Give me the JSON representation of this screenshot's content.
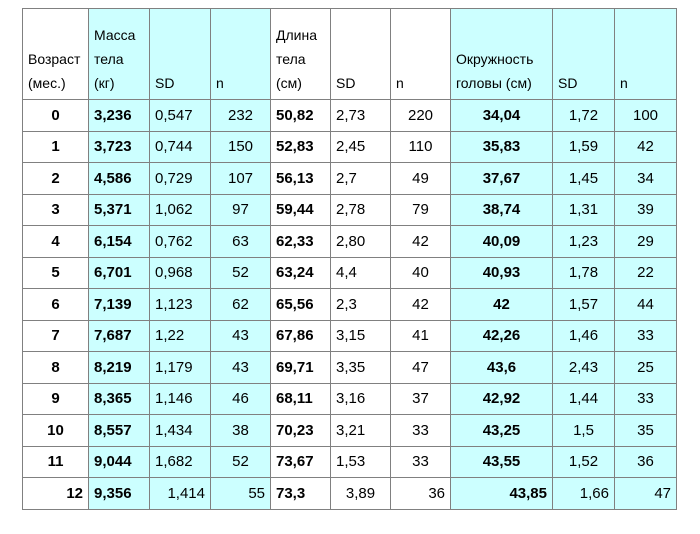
{
  "header": {
    "age": "Возраст (мес.)",
    "weight": "Масса тела (кг)",
    "sd1": "SD",
    "n1": "n",
    "length": "Длина тела (см)",
    "sd2": "SD",
    "n2": "n",
    "head": "Окружность головы (см)",
    "sd3": "SD",
    "n3": "n"
  },
  "rows": [
    [
      "0",
      "3,236",
      "0,547",
      "232",
      "50,82",
      "2,73",
      "220",
      "34,04",
      "1,72",
      "100"
    ],
    [
      "1",
      "3,723",
      "0,744",
      "150",
      "52,83",
      "2,45",
      "110",
      "35,83",
      "1,59",
      "42"
    ],
    [
      "2",
      "4,586",
      "0,729",
      "107",
      "56,13",
      "2,7",
      "49",
      "37,67",
      "1,45",
      "34"
    ],
    [
      "3",
      "5,371",
      "1,062",
      "97",
      "59,44",
      "2,78",
      "79",
      "38,74",
      "1,31",
      "39"
    ],
    [
      "4",
      "6,154",
      "0,762",
      "63",
      "62,33",
      "2,80",
      "42",
      "40,09",
      "1,23",
      "29"
    ],
    [
      "5",
      "6,701",
      "0,968",
      "52",
      "63,24",
      "4,4",
      "40",
      "40,93",
      "1,78",
      "22"
    ],
    [
      "6",
      "7,139",
      "1,123",
      "62",
      "65,56",
      "2,3",
      "42",
      "42",
      "1,57",
      "44"
    ],
    [
      "7",
      "7,687",
      "1,22",
      "43",
      "67,86",
      "3,15",
      "41",
      "42,26",
      "1,46",
      "33"
    ],
    [
      "8",
      "8,219",
      "1,179",
      "43",
      "69,71",
      "3,35",
      "47",
      "43,6",
      "2,43",
      "25"
    ],
    [
      "9",
      "8,365",
      "1,146",
      "46",
      "68,11",
      "3,16",
      "37",
      "42,92",
      "1,44",
      "33"
    ],
    [
      "10",
      "8,557",
      "1,434",
      "38",
      "70,23",
      "3,21",
      "33",
      "43,25",
      "1,5",
      "35"
    ],
    [
      "11",
      "9,044",
      "1,682",
      "52",
      "73,67",
      "1,53",
      "33",
      "43,55",
      "1,52",
      "36"
    ],
    [
      "12",
      "9,356",
      "1,414",
      "55",
      "73,3",
      "3,89",
      "36",
      "43,85",
      "1,66",
      "47"
    ]
  ]
}
